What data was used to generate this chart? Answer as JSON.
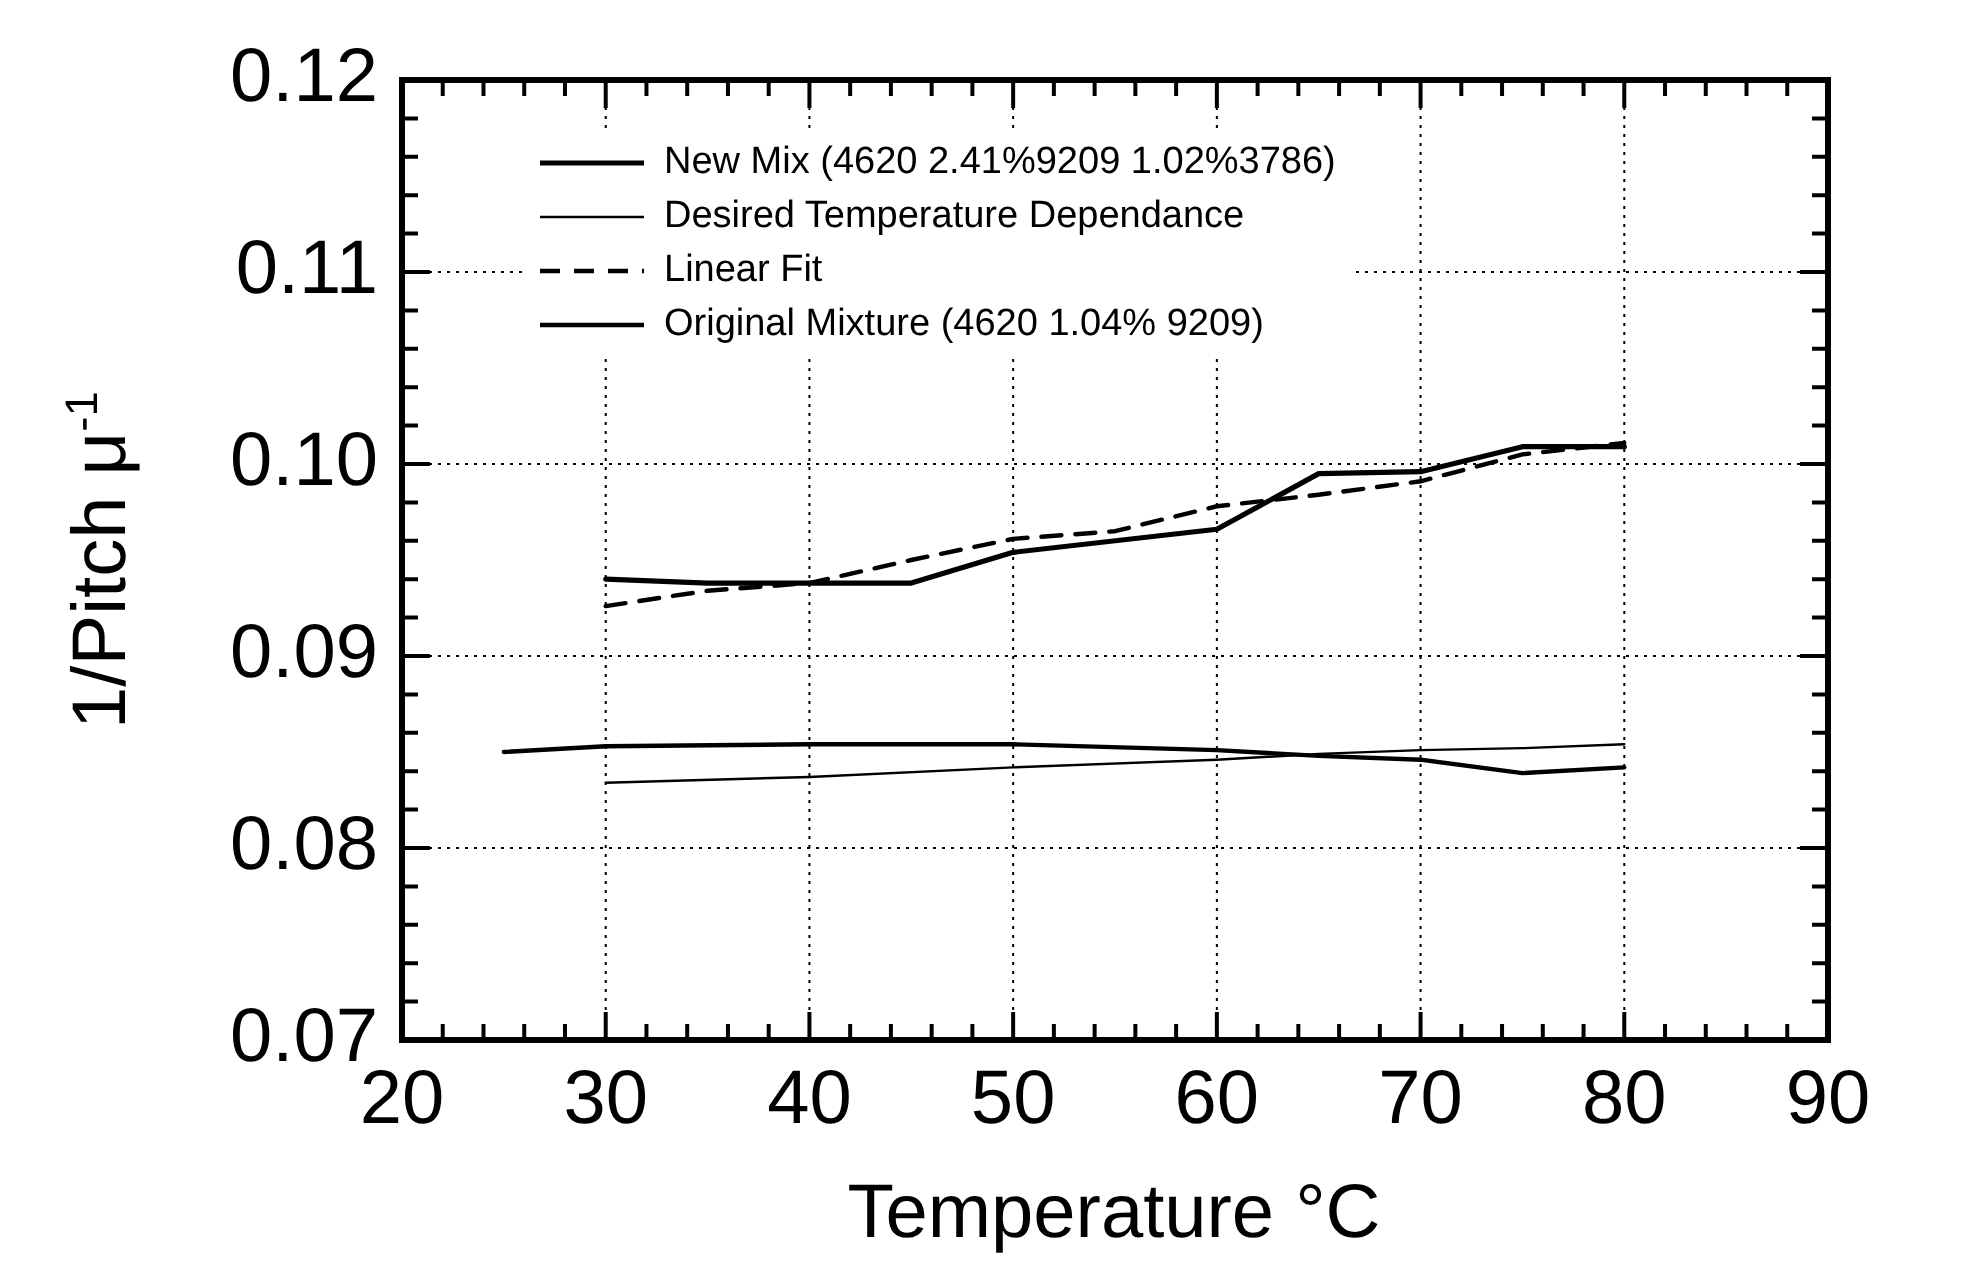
{
  "chart_data": {
    "type": "line",
    "xlabel": "Temperature °C",
    "ylabel": "1/Pitch μ$^{-1}$",
    "xlim": [
      20,
      90
    ],
    "ylim": [
      0.07,
      0.12
    ],
    "xticks": [
      20,
      {
        "value": 22,
        "label": null
      },
      {
        "value": 24,
        "label": null
      },
      {
        "value": 26,
        "label": null
      },
      {
        "value": 28,
        "label": null
      },
      30,
      {
        "value": 32,
        "label": null
      },
      {
        "value": 34,
        "label": null
      },
      {
        "value": 36,
        "label": null
      },
      {
        "value": 38,
        "label": null
      },
      40,
      {
        "value": 42,
        "label": null
      },
      {
        "value": 44,
        "label": null
      },
      {
        "value": 46,
        "label": null
      },
      {
        "value": 48,
        "label": null
      },
      50,
      {
        "value": 52,
        "label": null
      },
      {
        "value": 54,
        "label": null
      },
      {
        "value": 56,
        "label": null
      },
      {
        "value": 58,
        "label": null
      },
      60,
      {
        "value": 62,
        "label": null
      },
      {
        "value": 64,
        "label": null
      },
      {
        "value": 66,
        "label": null
      },
      {
        "value": 68,
        "label": null
      },
      70,
      {
        "value": 72,
        "label": null
      },
      {
        "value": 74,
        "label": null
      },
      {
        "value": 76,
        "label": null
      },
      {
        "value": 78,
        "label": null
      },
      80,
      {
        "value": 82,
        "label": null
      },
      {
        "value": 84,
        "label": null
      },
      {
        "value": 86,
        "label": null
      },
      {
        "value": 88,
        "label": null
      },
      90
    ],
    "yticks": [
      {
        "value": 0.07,
        "label": "0.07"
      },
      {
        "value": 0.072,
        "label": null
      },
      {
        "value": 0.074,
        "label": null
      },
      {
        "value": 0.076,
        "label": null
      },
      {
        "value": 0.078,
        "label": null
      },
      {
        "value": 0.08,
        "label": "0.08"
      },
      {
        "value": 0.082,
        "label": null
      },
      {
        "value": 0.084,
        "label": null
      },
      {
        "value": 0.086,
        "label": null
      },
      {
        "value": 0.088,
        "label": null
      },
      {
        "value": 0.09,
        "label": "0.09"
      },
      {
        "value": 0.092,
        "label": null
      },
      {
        "value": 0.094,
        "label": null
      },
      {
        "value": 0.096,
        "label": null
      },
      {
        "value": 0.098,
        "label": null
      },
      {
        "value": 0.1,
        "label": "0.10"
      },
      {
        "value": 0.102,
        "label": null
      },
      {
        "value": 0.104,
        "label": null
      },
      {
        "value": 0.106,
        "label": null
      },
      {
        "value": 0.108,
        "label": null
      },
      {
        "value": 0.11,
        "label": "0.11"
      },
      {
        "value": 0.112,
        "label": null
      },
      {
        "value": 0.114,
        "label": null
      },
      {
        "value": 0.116,
        "label": null
      },
      {
        "value": 0.118,
        "label": null
      },
      {
        "value": 0.12,
        "label": "0.12"
      }
    ],
    "grid": true,
    "legend": "top left",
    "marker": "none",
    "series": [
      {
        "name": "New Mix (4620 2.41%9209 1.02%3786)",
        "color": "#000000",
        "x": [
          30,
          35,
          40,
          45,
          50,
          60,
          65,
          70,
          75,
          80
        ],
        "values": [
          0.094,
          0.0938,
          0.0938,
          0.0938,
          0.0954,
          0.0966,
          0.0995,
          0.0996,
          0.1009,
          0.1009
        ]
      },
      {
        "name": "Desired Temperature Dependance",
        "color": "#000000",
        "x": [
          30,
          40,
          50,
          60,
          65,
          70,
          75,
          80
        ],
        "values": [
          0.0834,
          0.0837,
          0.0842,
          0.0846,
          0.0849,
          0.0851,
          0.0852,
          0.0854
        ]
      },
      {
        "name": "Linear Fit",
        "color": "#000000",
        "line_style": "dashed",
        "x": [
          30,
          35,
          40,
          45,
          50,
          55,
          60,
          65,
          70,
          75,
          80
        ],
        "values": [
          0.0926,
          0.0934,
          0.0938,
          0.095,
          0.0961,
          0.0965,
          0.0978,
          0.0984,
          0.0991,
          0.1005,
          0.1011
        ]
      },
      {
        "name": "Original Mixture (4620 1.04% 9209)",
        "color": "#000000",
        "x": [
          25,
          30,
          40,
          50,
          60,
          65,
          70,
          75,
          80
        ],
        "values": [
          0.085,
          0.0853,
          0.0854,
          0.0854,
          0.0851,
          0.0848,
          0.0846,
          0.0839,
          0.0842
        ]
      }
    ]
  }
}
